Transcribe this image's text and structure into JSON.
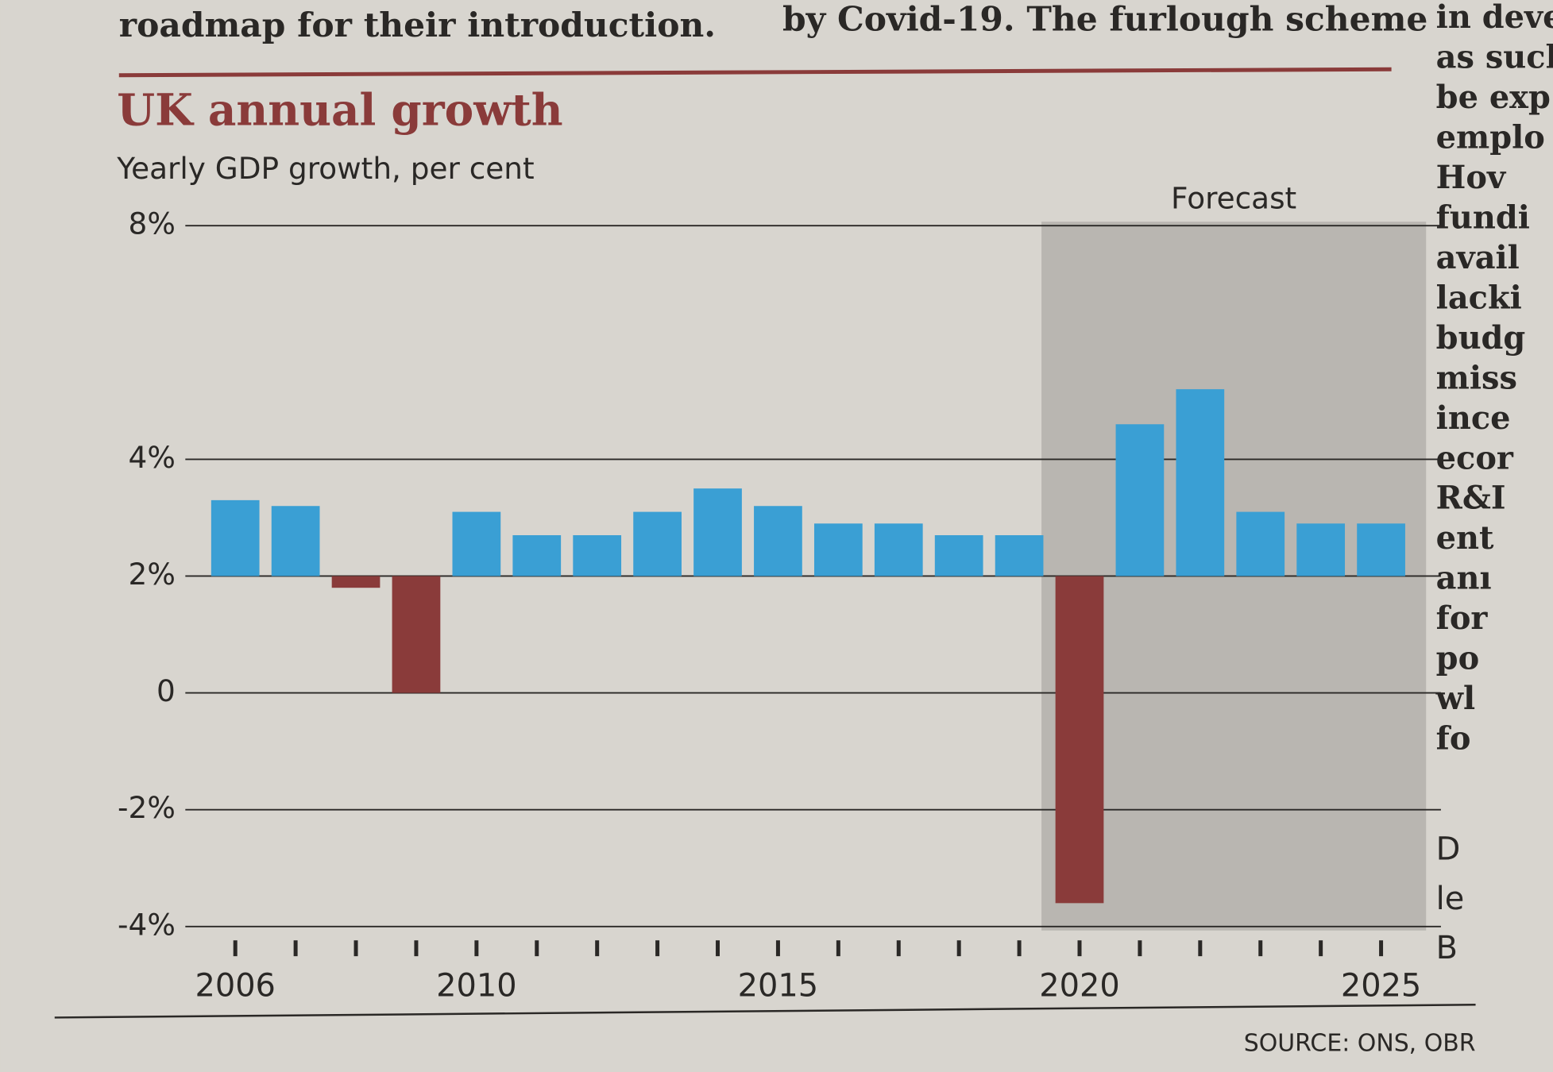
{
  "page_text": {
    "top_left": "roadmap for their introduction.",
    "top_middle": "by Covid-19. The furlough scheme",
    "right_column": [
      "in deve",
      "as such",
      "be exp",
      "emplo",
      "Hov",
      "fundi",
      "avail",
      "lacki",
      "budg",
      "miss",
      "ince",
      "ecor",
      "R&I",
      "ent",
      "anı",
      "for",
      "po",
      "wl",
      "fo",
      "D",
      "le",
      "B"
    ]
  },
  "chart_data": {
    "type": "bar",
    "title": "UK annual growth",
    "subtitle": "Yearly GDP growth, per cent",
    "annotation": "Forecast",
    "source": "SOURCE: ONS, OBR",
    "categories": [
      "2006",
      null,
      null,
      null,
      "2010",
      null,
      null,
      null,
      null,
      "2015",
      null,
      null,
      null,
      null,
      "2020",
      null,
      null,
      null,
      null,
      "2025"
    ],
    "values": [
      3.3,
      3.2,
      1.8,
      0,
      3.1,
      2.7,
      2.7,
      3.1,
      3.5,
      3.2,
      2.9,
      2.9,
      2.7,
      2.7,
      -3.6,
      4.6,
      5.2,
      3.1,
      2.9,
      2.9
    ],
    "bar_base": 2,
    "colors": {
      "above": "#3a9fd4",
      "below": "#8a3b3a"
    },
    "ylim": [
      -4,
      8
    ],
    "yticks": [
      {
        "value": 8,
        "label": "8%"
      },
      {
        "value": 4,
        "label": "4%"
      },
      {
        "value": 2,
        "label": "2%"
      },
      0,
      {
        "value": -2,
        "label": "-2%"
      },
      {
        "value": -4,
        "label": "-4%"
      }
    ],
    "grid": true
  }
}
